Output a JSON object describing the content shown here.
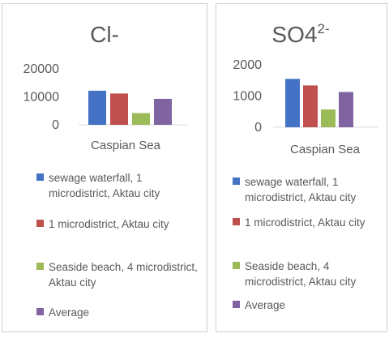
{
  "chart_data": [
    {
      "type": "bar",
      "title": "Cl-",
      "title_superscript": "",
      "categories": [
        "Caspian Sea"
      ],
      "ylim": [
        0,
        20000
      ],
      "yticks": [
        0,
        10000,
        20000
      ],
      "gridlines": false,
      "legend_position": "bottom",
      "series": [
        {
          "name": "sewage waterfall, 1 microdistrict, Aktau city",
          "color": "#4472c4",
          "values": [
            12200
          ]
        },
        {
          "name": "1 microdistrict, Aktau city",
          "color": "#c0504d",
          "values": [
            11200
          ]
        },
        {
          "name": "Seaside beach, 4 microdistrict, Aktau city",
          "color": "#9bbb59",
          "values": [
            4200
          ]
        },
        {
          "name": "Average",
          "color": "#8064a2",
          "values": [
            9300
          ]
        }
      ]
    },
    {
      "type": "bar",
      "title": "SO4",
      "title_superscript": "2-",
      "categories": [
        "Caspian Sea"
      ],
      "ylim": [
        0,
        2000
      ],
      "yticks": [
        0,
        1000,
        2000
      ],
      "gridlines": false,
      "legend_position": "bottom",
      "series": [
        {
          "name": "sewage waterfall, 1 microdistrict, Aktau city",
          "color": "#4472c4",
          "values": [
            1550
          ]
        },
        {
          "name": "1 microdistrict, Aktau city",
          "color": "#c0504d",
          "values": [
            1340
          ]
        },
        {
          "name": "Seaside beach, 4 microdistrict, Aktau city",
          "color": "#9bbb59",
          "values": [
            570
          ]
        },
        {
          "name": "Average",
          "color": "#8064a2",
          "values": [
            1130
          ]
        }
      ]
    }
  ]
}
